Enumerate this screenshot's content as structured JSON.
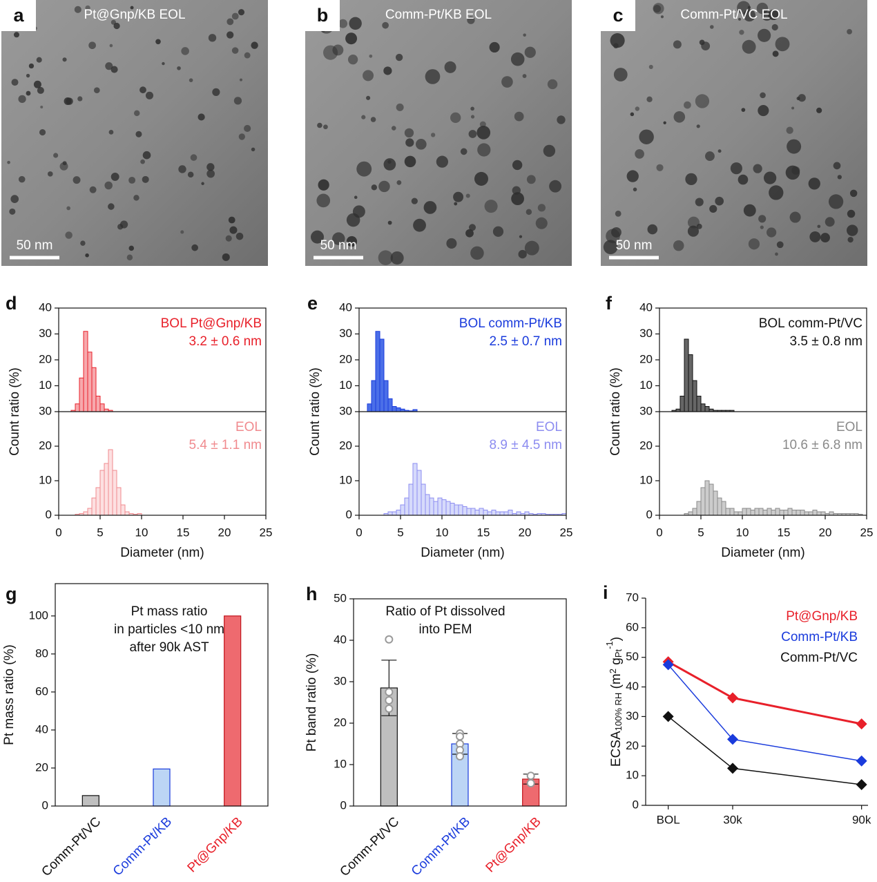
{
  "images": [
    {
      "label": "a",
      "caption": "Pt@Gnp/KB EOL",
      "scale_bar": "50 nm"
    },
    {
      "label": "b",
      "caption": "Comm-Pt/KB EOL",
      "scale_bar": "50 nm"
    },
    {
      "label": "c",
      "caption": "Comm-Pt/VC EOL",
      "scale_bar": "50 nm"
    }
  ],
  "chart_data": [
    {
      "type": "histogram",
      "label": "d",
      "xlabel": "Diameter (nm)",
      "ylabel": "Count ratio (%)",
      "xlim": [
        0,
        25
      ],
      "xticks": [
        0,
        5,
        10,
        15,
        20,
        25
      ],
      "series": [
        {
          "name": "BOL Pt@Gnp/KB",
          "annotation": "3.2 ± 0.6 nm",
          "color": "#e8202a",
          "fill": "#f7a9ad",
          "ylim": [
            0,
            40
          ],
          "yticks": [
            10,
            20,
            30,
            40
          ],
          "bins": [
            1.5,
            2,
            2.5,
            3,
            3.5,
            4,
            4.5,
            5,
            5.5,
            6,
            6.5
          ],
          "values": [
            0.5,
            3,
            13,
            31,
            23,
            17,
            6,
            3,
            1,
            0.5
          ]
        },
        {
          "name": "EOL",
          "annotation": "5.4 ± 1.1 nm",
          "color": "#f08a8e",
          "fill": "#fde0e1",
          "ylim": [
            0,
            30
          ],
          "yticks": [
            0,
            10,
            20,
            30
          ],
          "bins": [
            2,
            2.5,
            3,
            3.5,
            4,
            4.5,
            5,
            5.5,
            6,
            6.5,
            7,
            7.5,
            8,
            8.5,
            9,
            9.5,
            10
          ],
          "values": [
            0.3,
            0.5,
            1,
            2,
            5,
            8,
            13,
            15,
            19,
            13,
            8,
            3,
            1,
            0.5,
            0.3,
            0.5
          ]
        }
      ]
    },
    {
      "type": "histogram",
      "label": "e",
      "xlabel": "Diameter (nm)",
      "ylabel": "Count ratio (%)",
      "xlim": [
        0,
        25
      ],
      "xticks": [
        0,
        5,
        10,
        15,
        20,
        25
      ],
      "series": [
        {
          "name": "BOL comm-Pt/KB",
          "annotation": "2.5 ± 0.7 nm",
          "color": "#1a3bdc",
          "fill": "#4b6fe8",
          "ylim": [
            0,
            40
          ],
          "yticks": [
            10,
            20,
            30,
            40
          ],
          "bins": [
            1,
            1.5,
            2,
            2.5,
            3,
            3.5,
            4,
            4.5,
            5,
            5.5,
            6,
            6.5,
            7
          ],
          "values": [
            3,
            12,
            31,
            28,
            12,
            5,
            2,
            1.5,
            1,
            0.5,
            0.3,
            0.8
          ]
        },
        {
          "name": "EOL",
          "annotation": "8.9 ± 4.5 nm",
          "color": "#8c8cf0",
          "fill": "#d6dafb",
          "ylim": [
            0,
            30
          ],
          "yticks": [
            0,
            10,
            20,
            30
          ],
          "bins": [
            3,
            3.5,
            4,
            4.5,
            5,
            5.5,
            6,
            6.5,
            7,
            7.5,
            8,
            8.5,
            9,
            9.5,
            10,
            10.5,
            11,
            11.5,
            12,
            12.5,
            13,
            13.5,
            14,
            14.5,
            15,
            15.5,
            16,
            16.5,
            17,
            17.5,
            18,
            18.5,
            19,
            19.5,
            20,
            20.5,
            21,
            21.5,
            22,
            22.5,
            23,
            23.5,
            24,
            24.5,
            25
          ],
          "values": [
            0.5,
            1,
            1,
            1.5,
            3,
            5,
            9,
            15,
            13,
            9,
            6,
            5,
            4,
            5,
            4.5,
            4,
            3.5,
            3,
            3,
            2.5,
            2,
            2,
            1.5,
            2,
            1.5,
            1,
            1.5,
            1,
            1,
            1,
            1.5,
            0.5,
            1,
            0.5,
            1,
            0.5,
            0.3,
            0.5,
            0.5,
            0.3,
            0.3,
            0.3,
            0.3,
            0.5
          ]
        }
      ]
    },
    {
      "type": "histogram",
      "label": "f",
      "xlabel": "Diameter (nm)",
      "ylabel": "Count ratio (%)",
      "xlim": [
        0,
        25
      ],
      "xticks": [
        0,
        5,
        10,
        15,
        20,
        25
      ],
      "series": [
        {
          "name": "BOL comm-Pt/VC",
          "annotation": "3.5 ± 0.8 nm",
          "color": "#111111",
          "fill": "#666666",
          "ylim": [
            0,
            40
          ],
          "yticks": [
            10,
            20,
            30,
            40
          ],
          "bins": [
            1.5,
            2,
            2.5,
            3,
            3.5,
            4,
            4.5,
            5,
            5.5,
            6,
            6.5,
            7,
            7.5,
            8,
            8.5,
            9
          ],
          "values": [
            0.5,
            1,
            6,
            28,
            22,
            12,
            6,
            3,
            2,
            1,
            0.5,
            0.5,
            0.5,
            0.5,
            0.5
          ]
        },
        {
          "name": "EOL",
          "annotation": "10.6 ± 6.8 nm",
          "color": "#8a8a8a",
          "fill": "#cccccc",
          "ylim": [
            0,
            30
          ],
          "yticks": [
            0,
            10,
            20,
            30
          ],
          "bins": [
            3,
            3.5,
            4,
            4.5,
            5,
            5.5,
            6,
            6.5,
            7,
            7.5,
            8,
            8.5,
            9,
            9.5,
            10,
            10.5,
            11,
            11.5,
            12,
            12.5,
            13,
            13.5,
            14,
            14.5,
            15,
            15.5,
            16,
            16.5,
            17,
            17.5,
            18,
            18.5,
            19,
            19.5,
            20,
            20.5,
            21,
            21.5,
            22,
            22.5,
            23,
            23.5,
            24,
            24.5
          ],
          "values": [
            0.5,
            1,
            2,
            4,
            8,
            10,
            9,
            7,
            5,
            4,
            2,
            2,
            1,
            1,
            2,
            2,
            1.5,
            2,
            2,
            1.5,
            2,
            1.5,
            2,
            1.5,
            1.5,
            2,
            1.5,
            1.5,
            1.5,
            1,
            1,
            1.5,
            1,
            1,
            0.5,
            1,
            0.5,
            0.5,
            0.5,
            0.5,
            0.5,
            0.5,
            0.3
          ]
        }
      ]
    },
    {
      "type": "bar",
      "label": "g",
      "ylabel": "Pt mass ratio (%)",
      "annotation": [
        "Pt mass ratio",
        "in particles <10 nm",
        "after 90k AST"
      ],
      "categories": [
        "Comm-Pt/VC",
        "Comm-Pt/KB",
        "Pt@Gnp/KB"
      ],
      "category_colors": [
        "#111111",
        "#1a3bdc",
        "#e8202a"
      ],
      "values": [
        5.5,
        19.5,
        100
      ],
      "colors": [
        "#bfbfbf",
        "#bcd5f5",
        "#ee6a6f"
      ],
      "edge_colors": [
        "#111111",
        "#1a3bdc",
        "#c0141c"
      ],
      "ylim": [
        0,
        117
      ],
      "yticks": [
        0,
        20,
        40,
        60,
        80,
        100
      ]
    },
    {
      "type": "bar",
      "label": "h",
      "ylabel": "Pt band ratio (%)",
      "annotation": [
        "Ratio of Pt dissolved",
        "into PEM"
      ],
      "categories": [
        "Comm-Pt/VC",
        "Comm-Pt/KB",
        "Pt@Gnp/KB"
      ],
      "category_colors": [
        "#111111",
        "#1a3bdc",
        "#e8202a"
      ],
      "values": [
        28.5,
        15,
        6.5
      ],
      "errors": [
        6.7,
        2.5,
        1.2
      ],
      "points": [
        [
          40.2,
          27.5,
          25.5,
          23.5
        ],
        [
          17.5,
          16.8,
          15,
          13.5,
          12
        ],
        [
          7.3,
          5.5
        ]
      ],
      "colors": [
        "#bfbfbf",
        "#bcd5f5",
        "#ee6a6f"
      ],
      "edge_colors": [
        "#111111",
        "#1a3bdc",
        "#c0141c"
      ],
      "ylim": [
        0,
        50
      ],
      "yticks": [
        0,
        10,
        20,
        30,
        40,
        50
      ]
    },
    {
      "type": "line",
      "label": "i",
      "ylabel": [
        "ECSA",
        "100% RH",
        " (m",
        "2",
        " g",
        "Pt",
        "-1",
        ")"
      ],
      "x": [
        0,
        30,
        90
      ],
      "xlim": [
        -10.5,
        93
      ],
      "xticks": [
        {
          "value": 0,
          "label": "BOL"
        },
        {
          "value": 30,
          "label": "30k"
        },
        {
          "value": 90,
          "label": "90k"
        }
      ],
      "ylim": [
        0,
        70
      ],
      "yticks": [
        0,
        10,
        20,
        30,
        40,
        50,
        60,
        70
      ],
      "series": [
        {
          "name": "Pt@Gnp/KB",
          "color": "#e8202a",
          "line_width": 3,
          "values": [
            48.5,
            36.3,
            27.5
          ]
        },
        {
          "name": "Comm-Pt/KB",
          "color": "#1a3bdc",
          "line_width": 1.5,
          "values": [
            47.5,
            22.3,
            15
          ]
        },
        {
          "name": "Comm-Pt/VC",
          "color": "#111111",
          "line_width": 1.5,
          "values": [
            30,
            12.5,
            7
          ]
        }
      ]
    }
  ]
}
